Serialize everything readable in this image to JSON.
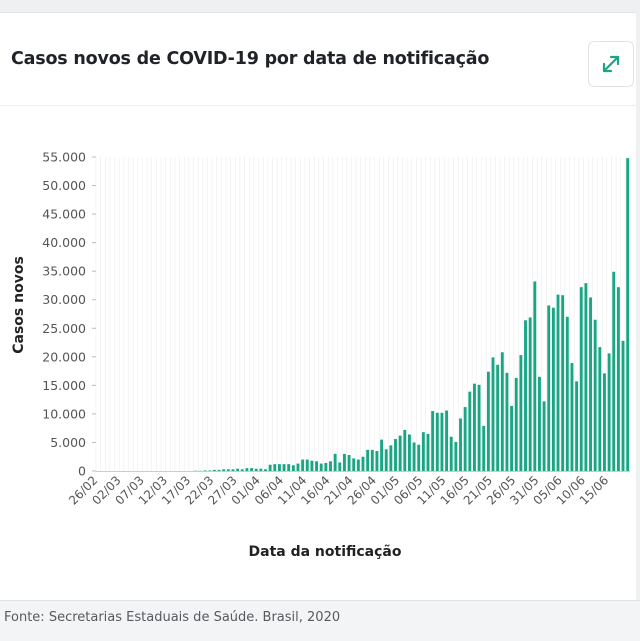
{
  "header": {
    "title": "Casos novos de COVID-19 por data de notificação",
    "expand_icon": "expand-arrows-icon"
  },
  "footer": {
    "source": "Fonte: Secretarias Estaduais de Saúde. Brasil, 2020"
  },
  "colors": {
    "bar": "#1aa585",
    "accent": "#1aa585",
    "grid": "#ececec",
    "axis_text": "#555555"
  },
  "chart_data": {
    "type": "bar",
    "xlabel": "Data da notificação",
    "ylabel": "Casos novos",
    "ylim": [
      0,
      55000
    ],
    "grid": true,
    "yticks": [
      0,
      5000,
      10000,
      15000,
      20000,
      25000,
      30000,
      35000,
      40000,
      45000,
      50000,
      55000
    ],
    "ytick_labels": [
      "0",
      "5.000",
      "10.000",
      "15.000",
      "20.000",
      "25.000",
      "30.000",
      "35.000",
      "40.000",
      "45.000",
      "50.000",
      "55.000"
    ],
    "xtick_labels": [
      "26/02",
      "02/03",
      "07/03",
      "12/03",
      "17/03",
      "22/03",
      "27/03",
      "01/04",
      "06/04",
      "11/04",
      "16/04",
      "21/04",
      "26/04",
      "01/05",
      "06/05",
      "11/05",
      "16/05",
      "21/05",
      "26/05",
      "31/05",
      "05/06",
      "10/06",
      "15/06"
    ],
    "xtick_every": 5,
    "values": [
      1,
      0,
      0,
      0,
      1,
      0,
      0,
      0,
      0,
      0,
      0,
      0,
      0,
      0,
      0,
      0,
      0,
      0,
      0,
      0,
      0,
      50,
      40,
      100,
      100,
      200,
      200,
      300,
      300,
      300,
      400,
      300,
      500,
      500,
      400,
      400,
      300,
      1100,
      1200,
      1200,
      1200,
      1200,
      1000,
      1300,
      2000,
      2000,
      1800,
      1700,
      1300,
      1400,
      1700,
      3000,
      1500,
      3000,
      2800,
      2200,
      2000,
      2500,
      3700,
      3700,
      3500,
      5500,
      3800,
      4500,
      5600,
      6200,
      7200,
      6400,
      5000,
      4600,
      6800,
      6500,
      10500,
      10200,
      10200,
      10600,
      6000,
      5100,
      9200,
      11200,
      13900,
      15300,
      15100,
      7900,
      17400,
      19900,
      18600,
      20800,
      17200,
      11400,
      16300,
      20300,
      26400,
      26900,
      33200,
      16500,
      12200,
      29000,
      28600,
      30900,
      30800,
      27000,
      18900,
      15700,
      32200,
      32900,
      30400,
      26500,
      21700,
      17100,
      20600,
      34900,
      32200,
      22800,
      54800
    ]
  }
}
